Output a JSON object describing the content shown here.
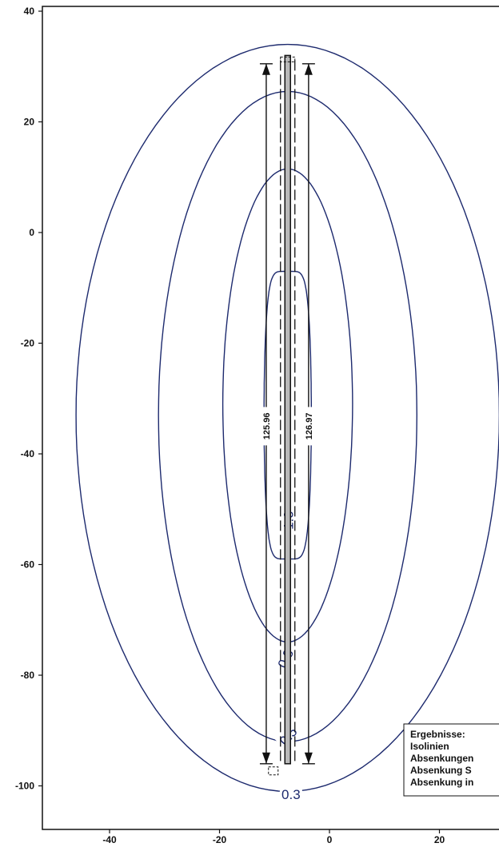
{
  "chart_data": {
    "type": "contour",
    "title": "",
    "xlabel": "",
    "ylabel": "",
    "xlim": [
      -52,
      32
    ],
    "ylim": [
      -107,
      41
    ],
    "x_ticks": [
      -40,
      -20,
      0,
      20
    ],
    "y_ticks": [
      40,
      20,
      0,
      -20,
      -40,
      -60,
      -80,
      -100
    ],
    "grid": false,
    "isolines": [
      {
        "level": "1.0",
        "cx": -7.6,
        "cy": -33,
        "rx": 4.3,
        "top": -7,
        "bottom": -59
      },
      {
        "level": "0.8",
        "cx": -7.6,
        "cy": -31,
        "rx": 11.8,
        "top": 11.5,
        "bottom": -74
      },
      {
        "level": "0.5",
        "cx": -7.6,
        "cy": -33,
        "rx": 23.5,
        "top": 25.5,
        "bottom": -92
      },
      {
        "level": "0.3",
        "cx": -7.6,
        "cy": -33,
        "rx": 38.5,
        "top": 34,
        "bottom": -101
      }
    ],
    "wells": [
      {
        "label": "125.96",
        "x": -11.5,
        "top": 30.5,
        "bottom": -96
      },
      {
        "label": "126.97",
        "x": -3.8,
        "top": 30.5,
        "bottom": -96
      }
    ],
    "line_source": {
      "x": -7.6,
      "top": 32,
      "bottom": -96
    },
    "legend": {
      "placement": "bottom-right",
      "items": [
        "Ergebnisse:",
        "Isolinien",
        "Absenkungen",
        "Absenkung S",
        "Absenkung in"
      ]
    },
    "colors": {
      "isoline": "#1d2a6e",
      "axis": "#111111",
      "fill": "#b9b9b9"
    }
  }
}
